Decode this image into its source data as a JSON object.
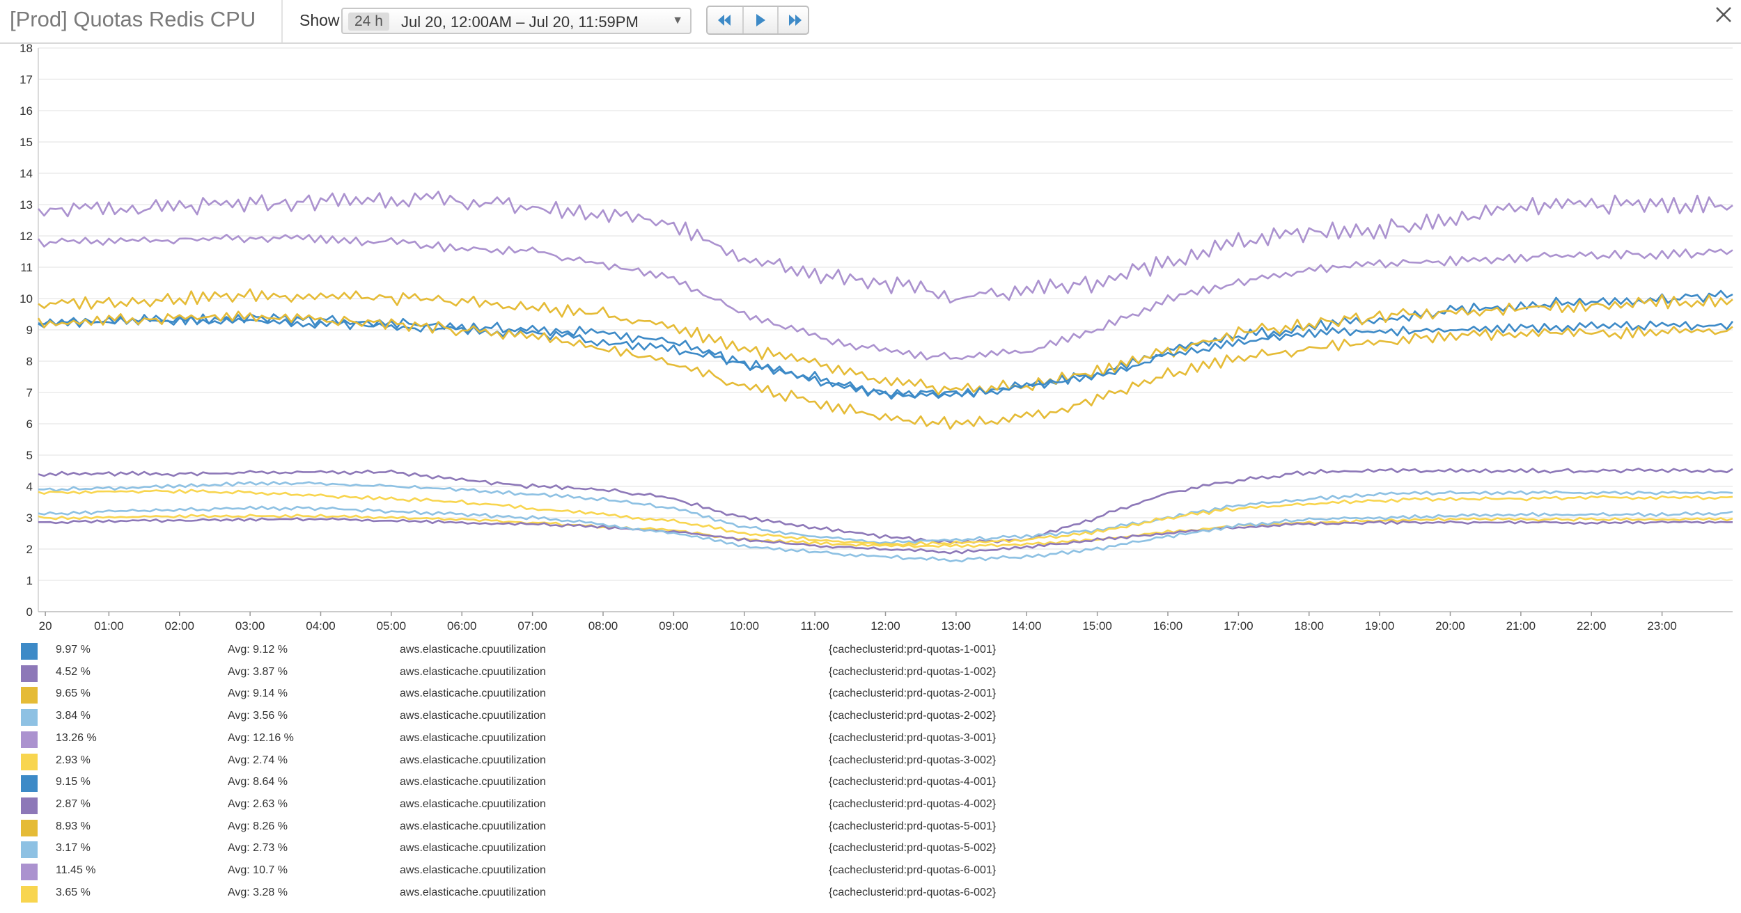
{
  "header": {
    "title": "[Prod] Quotas Redis CPU",
    "show_label": "Show",
    "duration": "24 h",
    "range": "Jul 20, 12:00AM – Jul 20, 11:59PM",
    "caret": "▼"
  },
  "colors": {
    "blue": "#3d8ac7",
    "purple": "#8d78b8",
    "gold": "#e5bb36",
    "lightblue": "#8ec1e3",
    "lavender": "#ab92cf",
    "yellow": "#f8d54f",
    "button_icon": "#3d8ac7"
  },
  "nav": {
    "rewind_icon": "rewind-icon",
    "play_icon": "play-icon",
    "fastforward_icon": "fast-forward-icon"
  },
  "legend": [
    {
      "current": "9.97 %",
      "avg": "Avg: 9.12 %",
      "metric": "aws.elasticache.cpuutilization",
      "tags": "{cacheclusterid:prd-quotas-1-001}",
      "color": "#3d8ac7"
    },
    {
      "current": "4.52 %",
      "avg": "Avg: 3.87 %",
      "metric": "aws.elasticache.cpuutilization",
      "tags": "{cacheclusterid:prd-quotas-1-002}",
      "color": "#8d78b8"
    },
    {
      "current": "9.65 %",
      "avg": "Avg: 9.14 %",
      "metric": "aws.elasticache.cpuutilization",
      "tags": "{cacheclusterid:prd-quotas-2-001}",
      "color": "#e5bb36"
    },
    {
      "current": "3.84 %",
      "avg": "Avg: 3.56 %",
      "metric": "aws.elasticache.cpuutilization",
      "tags": "{cacheclusterid:prd-quotas-2-002}",
      "color": "#8ec1e3"
    },
    {
      "current": "13.26 %",
      "avg": "Avg: 12.16 %",
      "metric": "aws.elasticache.cpuutilization",
      "tags": "{cacheclusterid:prd-quotas-3-001}",
      "color": "#ab92cf"
    },
    {
      "current": "2.93 %",
      "avg": "Avg: 2.74 %",
      "metric": "aws.elasticache.cpuutilization",
      "tags": "{cacheclusterid:prd-quotas-3-002}",
      "color": "#f8d54f"
    },
    {
      "current": "9.15 %",
      "avg": "Avg: 8.64 %",
      "metric": "aws.elasticache.cpuutilization",
      "tags": "{cacheclusterid:prd-quotas-4-001}",
      "color": "#3d8ac7"
    },
    {
      "current": "2.87 %",
      "avg": "Avg: 2.63 %",
      "metric": "aws.elasticache.cpuutilization",
      "tags": "{cacheclusterid:prd-quotas-4-002}",
      "color": "#8d78b8"
    },
    {
      "current": "8.93 %",
      "avg": "Avg: 8.26 %",
      "metric": "aws.elasticache.cpuutilization",
      "tags": "{cacheclusterid:prd-quotas-5-001}",
      "color": "#e5bb36"
    },
    {
      "current": "3.17 %",
      "avg": "Avg: 2.73 %",
      "metric": "aws.elasticache.cpuutilization",
      "tags": "{cacheclusterid:prd-quotas-5-002}",
      "color": "#8ec1e3"
    },
    {
      "current": "11.45 %",
      "avg": "Avg: 10.7 %",
      "metric": "aws.elasticache.cpuutilization",
      "tags": "{cacheclusterid:prd-quotas-6-001}",
      "color": "#ab92cf"
    },
    {
      "current": "3.65 %",
      "avg": "Avg: 3.28 %",
      "metric": "aws.elasticache.cpuutilization",
      "tags": "{cacheclusterid:prd-quotas-6-002}",
      "color": "#f8d54f"
    }
  ],
  "chart_data": {
    "type": "line",
    "title": "[Prod] Quotas Redis CPU",
    "xlabel": "",
    "ylabel": "",
    "ylim": [
      0,
      18
    ],
    "xlim": [
      0,
      24
    ],
    "grid": true,
    "legend_position": "bottom",
    "y_ticks": [
      "0",
      "1",
      "2",
      "3",
      "4",
      "5",
      "6",
      "7",
      "8",
      "9",
      "10",
      "11",
      "12",
      "13",
      "14",
      "15",
      "16",
      "17",
      "18"
    ],
    "x_ticks": [
      {
        "x": 0.1,
        "label": "20"
      },
      {
        "x": 1,
        "label": "01:00"
      },
      {
        "x": 2,
        "label": "02:00"
      },
      {
        "x": 3,
        "label": "03:00"
      },
      {
        "x": 4,
        "label": "04:00"
      },
      {
        "x": 5,
        "label": "05:00"
      },
      {
        "x": 6,
        "label": "06:00"
      },
      {
        "x": 7,
        "label": "07:00"
      },
      {
        "x": 8,
        "label": "08:00"
      },
      {
        "x": 9,
        "label": "09:00"
      },
      {
        "x": 10,
        "label": "10:00"
      },
      {
        "x": 11,
        "label": "11:00"
      },
      {
        "x": 12,
        "label": "12:00"
      },
      {
        "x": 13,
        "label": "13:00"
      },
      {
        "x": 14,
        "label": "14:00"
      },
      {
        "x": 15,
        "label": "15:00"
      },
      {
        "x": 16,
        "label": "16:00"
      },
      {
        "x": 17,
        "label": "17:00"
      },
      {
        "x": 18,
        "label": "18:00"
      },
      {
        "x": 19,
        "label": "19:00"
      },
      {
        "x": 20,
        "label": "20:00"
      },
      {
        "x": 21,
        "label": "21:00"
      },
      {
        "x": 22,
        "label": "22:00"
      },
      {
        "x": 23,
        "label": "23:00"
      }
    ],
    "x_hours": [
      0,
      1,
      2,
      3,
      4,
      5,
      6,
      7,
      8,
      9,
      10,
      11,
      12,
      13,
      14,
      15,
      16,
      17,
      18,
      19,
      20,
      21,
      22,
      23,
      24
    ],
    "series": [
      {
        "name": "{cacheclusterid:prd-quotas-1-001}",
        "color": "#3d8ac7",
        "jitter": 0.15,
        "values": [
          9.2,
          9.3,
          9.3,
          9.4,
          9.3,
          9.2,
          9.1,
          9.0,
          8.9,
          8.6,
          7.9,
          7.5,
          7.0,
          7.0,
          7.2,
          7.6,
          8.3,
          8.8,
          9.1,
          9.3,
          9.6,
          9.8,
          9.9,
          10.0,
          10.1
        ]
      },
      {
        "name": "{cacheclusterid:prd-quotas-1-002}",
        "color": "#8d78b8",
        "jitter": 0.06,
        "values": [
          4.4,
          4.4,
          4.4,
          4.45,
          4.45,
          4.45,
          4.2,
          4.0,
          3.9,
          3.6,
          3.0,
          2.7,
          2.4,
          2.2,
          2.3,
          3.0,
          3.8,
          4.2,
          4.45,
          4.5,
          4.5,
          4.5,
          4.5,
          4.5,
          4.5
        ]
      },
      {
        "name": "{cacheclusterid:prd-quotas-2-001}",
        "color": "#e5bb36",
        "jitter": 0.18,
        "values": [
          9.8,
          9.9,
          10.0,
          10.1,
          10.1,
          10.0,
          9.9,
          9.7,
          9.5,
          9.1,
          8.4,
          7.9,
          7.3,
          7.1,
          7.2,
          7.7,
          8.3,
          8.9,
          9.2,
          9.4,
          9.6,
          9.7,
          9.8,
          9.9,
          9.9
        ]
      },
      {
        "name": "{cacheclusterid:prd-quotas-2-002}",
        "color": "#8ec1e3",
        "jitter": 0.05,
        "values": [
          3.9,
          3.95,
          4.0,
          4.1,
          4.1,
          4.0,
          3.9,
          3.75,
          3.6,
          3.3,
          2.7,
          2.4,
          2.2,
          2.3,
          2.4,
          2.6,
          3.0,
          3.4,
          3.6,
          3.75,
          3.8,
          3.8,
          3.8,
          3.8,
          3.8
        ]
      },
      {
        "name": "{cacheclusterid:prd-quotas-3-001}",
        "color": "#ab92cf",
        "jitter": 0.25,
        "values": [
          12.9,
          12.8,
          12.9,
          13.0,
          13.1,
          13.2,
          13.1,
          12.9,
          12.7,
          12.4,
          11.3,
          10.8,
          10.5,
          10.0,
          10.3,
          10.5,
          11.2,
          11.8,
          12.1,
          12.2,
          12.5,
          12.9,
          13.0,
          13.0,
          13.0
        ]
      },
      {
        "name": "{cacheclusterid:prd-quotas-3-002}",
        "color": "#f8d54f",
        "jitter": 0.04,
        "values": [
          3.0,
          3.0,
          3.05,
          3.05,
          3.05,
          3.0,
          2.95,
          2.85,
          2.7,
          2.6,
          2.3,
          2.2,
          2.1,
          2.1,
          2.15,
          2.3,
          2.55,
          2.75,
          2.85,
          2.9,
          2.95,
          2.95,
          2.95,
          2.95,
          2.95
        ]
      },
      {
        "name": "{cacheclusterid:prd-quotas-4-001}",
        "color": "#3d8ac7",
        "jitter": 0.12,
        "values": [
          9.2,
          9.25,
          9.3,
          9.3,
          9.2,
          9.1,
          9.0,
          8.9,
          8.6,
          8.4,
          7.9,
          7.4,
          6.9,
          6.9,
          7.2,
          7.5,
          8.2,
          8.6,
          8.9,
          8.95,
          9.0,
          9.05,
          9.1,
          9.15,
          9.15
        ]
      },
      {
        "name": "{cacheclusterid:prd-quotas-4-002}",
        "color": "#8d78b8",
        "jitter": 0.04,
        "values": [
          2.85,
          2.9,
          2.9,
          2.95,
          2.95,
          2.9,
          2.85,
          2.8,
          2.7,
          2.55,
          2.3,
          2.1,
          2.0,
          1.9,
          2.05,
          2.3,
          2.5,
          2.7,
          2.8,
          2.85,
          2.85,
          2.85,
          2.85,
          2.85,
          2.85
        ]
      },
      {
        "name": "{cacheclusterid:prd-quotas-5-001}",
        "color": "#e5bb36",
        "jitter": 0.16,
        "values": [
          9.2,
          9.3,
          9.4,
          9.4,
          9.3,
          9.2,
          9.0,
          8.8,
          8.4,
          7.9,
          7.2,
          6.7,
          6.2,
          6.0,
          6.2,
          6.8,
          7.6,
          8.1,
          8.4,
          8.6,
          8.8,
          8.85,
          8.9,
          8.9,
          8.95
        ]
      },
      {
        "name": "{cacheclusterid:prd-quotas-5-002}",
        "color": "#8ec1e3",
        "jitter": 0.05,
        "values": [
          3.1,
          3.2,
          3.25,
          3.3,
          3.3,
          3.2,
          3.1,
          3.0,
          2.8,
          2.5,
          2.1,
          1.9,
          1.75,
          1.65,
          1.75,
          2.0,
          2.4,
          2.75,
          2.95,
          3.0,
          3.05,
          3.1,
          3.1,
          3.1,
          3.15
        ]
      },
      {
        "name": "{cacheclusterid:prd-quotas-6-001}",
        "color": "#ab92cf",
        "jitter": 0.12,
        "values": [
          11.8,
          11.8,
          11.9,
          11.9,
          11.9,
          11.8,
          11.6,
          11.5,
          11.1,
          10.6,
          9.5,
          8.8,
          8.3,
          8.1,
          8.3,
          9.0,
          10.0,
          10.5,
          10.9,
          11.1,
          11.2,
          11.3,
          11.4,
          11.4,
          11.5
        ]
      },
      {
        "name": "{cacheclusterid:prd-quotas-6-002}",
        "color": "#f8d54f",
        "jitter": 0.05,
        "values": [
          3.8,
          3.85,
          3.85,
          3.8,
          3.7,
          3.6,
          3.5,
          3.3,
          3.1,
          2.9,
          2.5,
          2.3,
          2.15,
          2.2,
          2.3,
          2.55,
          3.0,
          3.3,
          3.45,
          3.55,
          3.6,
          3.6,
          3.65,
          3.65,
          3.65
        ]
      }
    ]
  }
}
